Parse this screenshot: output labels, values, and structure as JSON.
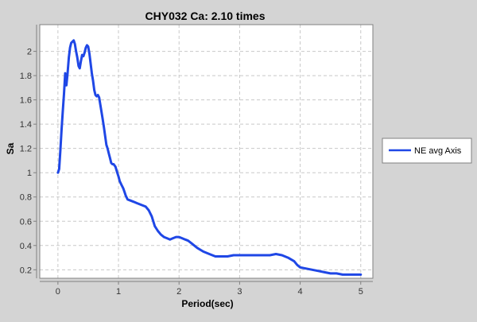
{
  "chart_data": {
    "type": "line",
    "title": "CHY032 Ca: 2.10 times",
    "xlabel": "Period(sec)",
    "ylabel": "Sa",
    "xlim": [
      -0.3,
      5.2
    ],
    "ylim": [
      0.13,
      2.22
    ],
    "xticks": [
      0,
      1,
      2,
      3,
      4,
      5
    ],
    "xtick_labels": [
      "0",
      "1",
      "2",
      "3",
      "4",
      "5"
    ],
    "yticks": [
      0.2,
      0.4,
      0.6,
      0.8,
      1.0,
      1.2,
      1.4,
      1.6,
      1.8,
      2.0
    ],
    "ytick_labels": [
      "0.2",
      "0.4",
      "0.6",
      "0.8",
      "1",
      "1.2",
      "1.4",
      "1.6",
      "1.8",
      "2"
    ],
    "grid": true,
    "legend_position": "right",
    "series": [
      {
        "name": "NE avg Axis",
        "color": "#1f47e6",
        "x": [
          0.0,
          0.02,
          0.04,
          0.06,
          0.08,
          0.1,
          0.12,
          0.14,
          0.16,
          0.18,
          0.2,
          0.22,
          0.24,
          0.26,
          0.28,
          0.3,
          0.32,
          0.34,
          0.36,
          0.38,
          0.4,
          0.42,
          0.44,
          0.46,
          0.48,
          0.5,
          0.52,
          0.54,
          0.56,
          0.58,
          0.6,
          0.62,
          0.64,
          0.66,
          0.68,
          0.7,
          0.72,
          0.74,
          0.76,
          0.78,
          0.8,
          0.82,
          0.84,
          0.86,
          0.88,
          0.9,
          0.92,
          0.95,
          0.98,
          1.0,
          1.02,
          1.05,
          1.08,
          1.1,
          1.12,
          1.15,
          1.2,
          1.25,
          1.3,
          1.35,
          1.4,
          1.45,
          1.5,
          1.55,
          1.6,
          1.65,
          1.7,
          1.75,
          1.8,
          1.85,
          1.9,
          1.95,
          2.0,
          2.05,
          2.1,
          2.15,
          2.2,
          2.3,
          2.4,
          2.5,
          2.55,
          2.6,
          2.65,
          2.7,
          2.8,
          2.9,
          3.0,
          3.1,
          3.2,
          3.3,
          3.4,
          3.5,
          3.6,
          3.7,
          3.8,
          3.9,
          3.95,
          4.0,
          4.1,
          4.2,
          4.3,
          4.4,
          4.5,
          4.6,
          4.7,
          4.8,
          4.9,
          5.0
        ],
        "y": [
          1.0,
          1.03,
          1.18,
          1.35,
          1.5,
          1.65,
          1.82,
          1.72,
          1.82,
          1.95,
          2.03,
          2.07,
          2.08,
          2.09,
          2.06,
          2.0,
          1.95,
          1.88,
          1.86,
          1.92,
          1.97,
          1.96,
          1.99,
          2.03,
          2.05,
          2.04,
          1.98,
          1.9,
          1.82,
          1.76,
          1.68,
          1.64,
          1.63,
          1.64,
          1.62,
          1.56,
          1.5,
          1.44,
          1.37,
          1.3,
          1.23,
          1.2,
          1.16,
          1.12,
          1.08,
          1.07,
          1.07,
          1.05,
          1.0,
          0.97,
          0.93,
          0.9,
          0.87,
          0.84,
          0.81,
          0.78,
          0.77,
          0.76,
          0.75,
          0.74,
          0.73,
          0.72,
          0.69,
          0.64,
          0.56,
          0.52,
          0.49,
          0.47,
          0.46,
          0.45,
          0.46,
          0.47,
          0.47,
          0.46,
          0.45,
          0.44,
          0.42,
          0.38,
          0.35,
          0.33,
          0.32,
          0.31,
          0.31,
          0.31,
          0.31,
          0.32,
          0.32,
          0.32,
          0.32,
          0.32,
          0.32,
          0.32,
          0.33,
          0.32,
          0.3,
          0.27,
          0.24,
          0.22,
          0.21,
          0.2,
          0.19,
          0.18,
          0.17,
          0.17,
          0.16,
          0.16,
          0.16,
          0.16
        ]
      }
    ]
  }
}
